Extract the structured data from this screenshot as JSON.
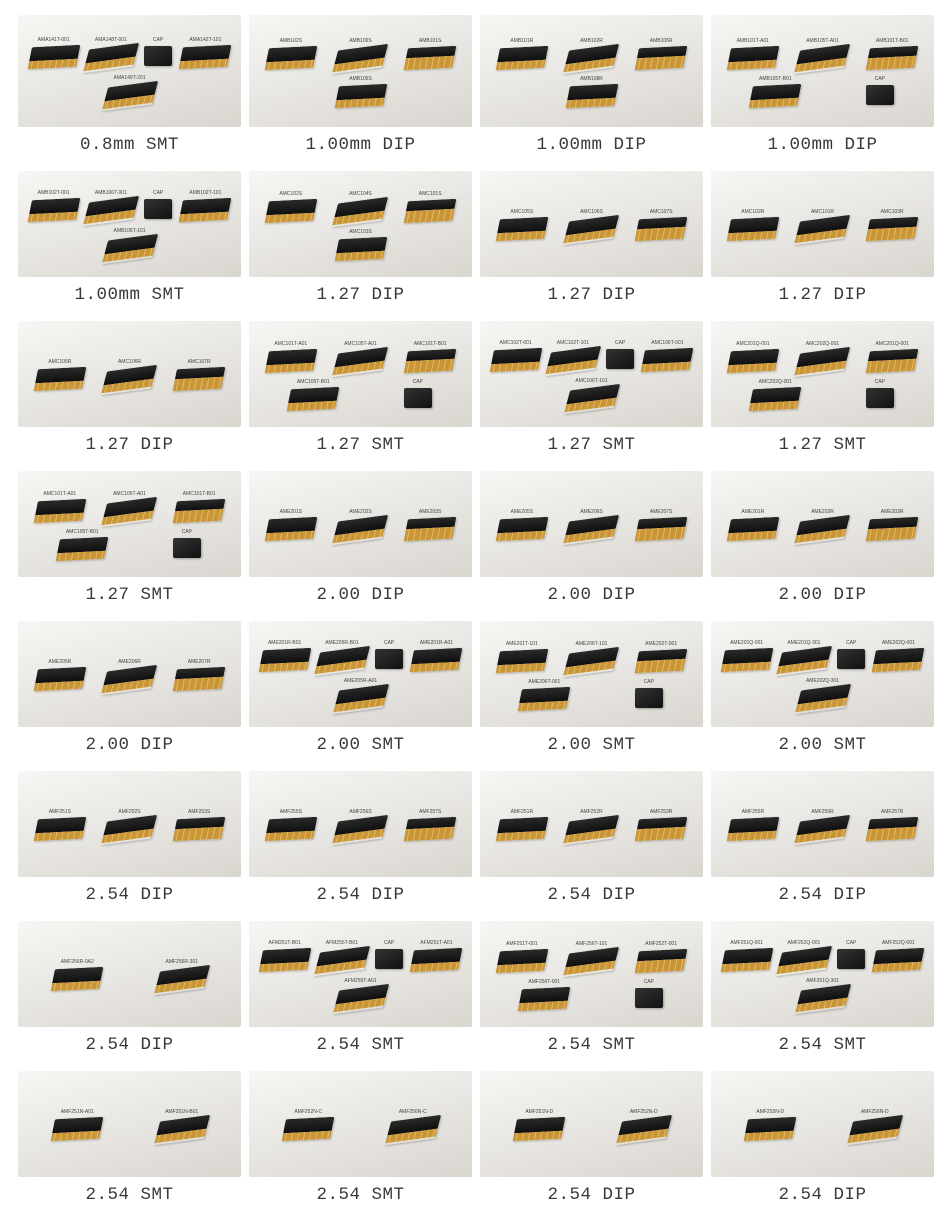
{
  "items": [
    {
      "caption": "0.8mm SMT",
      "parts": [
        "AMA141T-001",
        "AMA148T-001",
        "CAP",
        "AMA142T-101",
        "AMA149T-201"
      ]
    },
    {
      "caption": "1.00mm DIP",
      "parts": [
        "AMB102S",
        "AMB106S",
        "AMB101S",
        "AMB105S"
      ]
    },
    {
      "caption": "1.00mm DIP",
      "parts": [
        "AMB101R",
        "AMB102R",
        "AMB106R",
        "AMB108R"
      ]
    },
    {
      "caption": "1.00mm DIP",
      "parts": [
        "AMB101T-A01",
        "AMB105T-A01",
        "AMB101T-B01",
        "AMB105T-B01",
        "CAP"
      ]
    },
    {
      "caption": "1.00mm SMT",
      "parts": [
        "AMB102T-001",
        "AMB106T-001",
        "CAP",
        "AMB102T-101",
        "AMB106T-101"
      ]
    },
    {
      "caption": "1.27 DIP",
      "parts": [
        "AMC102S",
        "AMC104S",
        "AMC101S",
        "AMC103S"
      ]
    },
    {
      "caption": "1.27 DIP",
      "parts": [
        "AMC105S",
        "AMC106S",
        "AMC107S"
      ]
    },
    {
      "caption": "1.27 DIP",
      "parts": [
        "AMC102R",
        "AMC101R",
        "AMC103R"
      ]
    },
    {
      "caption": "1.27 DIP",
      "parts": [
        "AMC105R",
        "AMC106R",
        "AMC107R"
      ]
    },
    {
      "caption": "1.27 SMT",
      "parts": [
        "AMC101T-A01",
        "AMC105T-A01",
        "AMC101T-B01",
        "AMC105T-B01",
        "CAP"
      ]
    },
    {
      "caption": "1.27 SMT",
      "parts": [
        "AMC102T-001",
        "AMC102T-101",
        "CAP",
        "AMC106T-001",
        "AMC106T-101"
      ]
    },
    {
      "caption": "1.27 SMT",
      "parts": [
        "AMC201Q-001",
        "AMC202Q-001",
        "AMC201Q-001",
        "AMC202Q-001",
        "CAP"
      ]
    },
    {
      "caption": "1.27 SMT",
      "parts": [
        "AMC101T-A01",
        "AMC105T-A01",
        "AMC101T-B01",
        "AMC105T-B01",
        "CAP"
      ]
    },
    {
      "caption": "2.00 DIP",
      "parts": [
        "AME201S",
        "AME202S",
        "AME203S"
      ]
    },
    {
      "caption": "2.00 DIP",
      "parts": [
        "AME205S",
        "AME206S",
        "AME207S"
      ]
    },
    {
      "caption": "2.00 DIP",
      "parts": [
        "AME201R",
        "AME202R",
        "AME203R"
      ]
    },
    {
      "caption": "2.00 DIP",
      "parts": [
        "AME205R",
        "AME206R",
        "AME207R"
      ]
    },
    {
      "caption": "2.00 SMT",
      "parts": [
        "AME201R-B01",
        "AME205R-B01",
        "CAP",
        "AME201R-A01",
        "AME205R-A01"
      ]
    },
    {
      "caption": "2.00 SMT",
      "parts": [
        "AME201T-101",
        "AME206T-101",
        "AME202T-001",
        "AME206T-001",
        "CAP"
      ]
    },
    {
      "caption": "2.00 SMT",
      "parts": [
        "AME201Q-001",
        "AME201Q-301",
        "CAP",
        "AME202Q-001",
        "AME202Q-301"
      ]
    },
    {
      "caption": "2.54 DIP",
      "parts": [
        "AMF251S",
        "AMF252S",
        "AMF253S"
      ]
    },
    {
      "caption": "2.54 DIP",
      "parts": [
        "AMF255S",
        "AMF256S",
        "AMF257S"
      ]
    },
    {
      "caption": "2.54 DIP",
      "parts": [
        "AMF251R",
        "AMF252R",
        "AMF253R"
      ]
    },
    {
      "caption": "2.54 DIP",
      "parts": [
        "AMF255R",
        "AMF256R",
        "AMF257R"
      ]
    },
    {
      "caption": "2.54 DIP",
      "parts": [
        "AMF256R-0A2",
        "AMF256R-301"
      ]
    },
    {
      "caption": "2.54 SMT",
      "parts": [
        "AFM251T-B01",
        "AFM255T-B01",
        "CAP",
        "AFM251T-A01",
        "AFM255T-A01"
      ]
    },
    {
      "caption": "2.54 SMT",
      "parts": [
        "AMF251T-001",
        "AMF256T-101",
        "AMF252T-001",
        "AMF256T-001",
        "CAP"
      ]
    },
    {
      "caption": "2.54 SMT",
      "parts": [
        "AMF251Q-001",
        "AMF252Q-001",
        "CAP",
        "AMF252Q-001",
        "AMF251Q-301"
      ]
    },
    {
      "caption": "2.54 SMT",
      "parts": [
        "AMF251N-A01",
        "AMF251N-B01"
      ]
    },
    {
      "caption": "2.54 SMT",
      "parts": [
        "AMF252N-C",
        "AMF256N-C"
      ]
    },
    {
      "caption": "2.54 DIP",
      "parts": [
        "AMF251N-D",
        "AMF252N-D"
      ]
    },
    {
      "caption": "2.54 DIP",
      "parts": [
        "AMF255N-D",
        "AMF256N-D"
      ]
    }
  ],
  "style": {
    "caption_color": "#3a3a3a",
    "caption_fontsize": 17.5,
    "thumb_bg_top": "#f7f6f4",
    "thumb_bg_bottom": "#d9d6d0",
    "connector_body": "#1a1a1a",
    "connector_pins": "#c89638",
    "part_label_color": "#444",
    "part_label_fontsize": 5
  }
}
